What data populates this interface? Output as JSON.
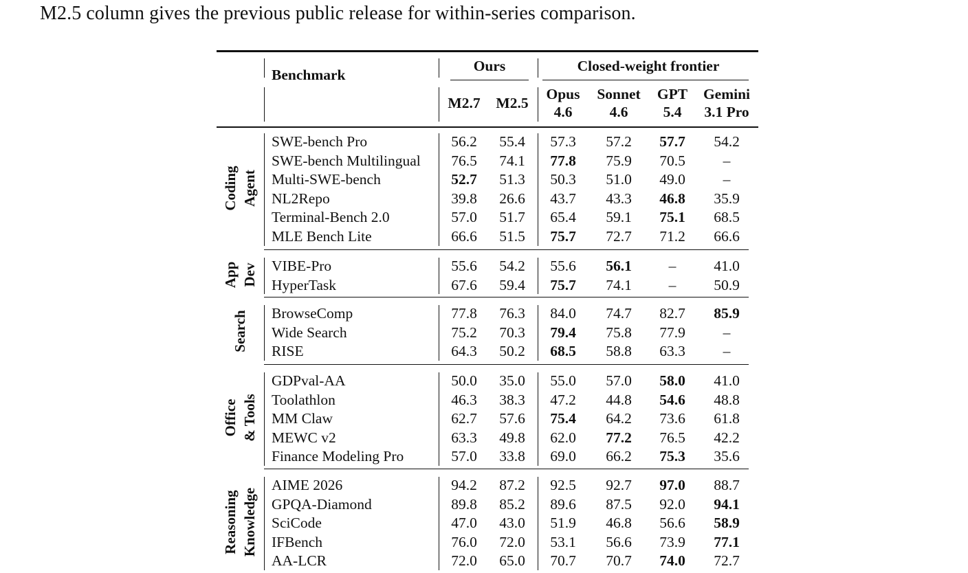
{
  "caption": "M2.5 column gives the previous public release for within-series comparison.",
  "header": {
    "benchmark": "Benchmark",
    "ours": "Ours",
    "closed": "Closed-weight frontier",
    "columns": [
      [
        "M2.7"
      ],
      [
        "M2.5"
      ],
      [
        "Opus",
        "4.6"
      ],
      [
        "Sonnet",
        "4.6"
      ],
      [
        "GPT",
        "5.4"
      ],
      [
        "Gemini",
        "3.1 Pro"
      ]
    ]
  },
  "groups": [
    {
      "label": [
        "Coding",
        "Agent"
      ],
      "rows": [
        {
          "name": "SWE-bench Pro",
          "values": [
            "56.2",
            "55.4",
            "57.3",
            "57.2",
            "57.7",
            "54.2"
          ],
          "bold": 4
        },
        {
          "name": "SWE-bench Multilingual",
          "values": [
            "76.5",
            "74.1",
            "77.8",
            "75.9",
            "70.5",
            "–"
          ],
          "bold": 2
        },
        {
          "name": "Multi-SWE-bench",
          "values": [
            "52.7",
            "51.3",
            "50.3",
            "51.0",
            "49.0",
            "–"
          ],
          "bold": 0
        },
        {
          "name": "NL2Repo",
          "values": [
            "39.8",
            "26.6",
            "43.7",
            "43.3",
            "46.8",
            "35.9"
          ],
          "bold": 4
        },
        {
          "name": "Terminal-Bench 2.0",
          "values": [
            "57.0",
            "51.7",
            "65.4",
            "59.1",
            "75.1",
            "68.5"
          ],
          "bold": 4
        },
        {
          "name": "MLE Bench Lite",
          "values": [
            "66.6",
            "51.5",
            "75.7",
            "72.7",
            "71.2",
            "66.6"
          ],
          "bold": 2
        }
      ]
    },
    {
      "label": [
        "App",
        "Dev"
      ],
      "rows": [
        {
          "name": "VIBE-Pro",
          "values": [
            "55.6",
            "54.2",
            "55.6",
            "56.1",
            "–",
            "41.0"
          ],
          "bold": 3
        },
        {
          "name": "HyperTask",
          "values": [
            "67.6",
            "59.4",
            "75.7",
            "74.1",
            "–",
            "50.9"
          ],
          "bold": 2
        }
      ]
    },
    {
      "label": [
        "Search"
      ],
      "rows": [
        {
          "name": "BrowseComp",
          "values": [
            "77.8",
            "76.3",
            "84.0",
            "74.7",
            "82.7",
            "85.9"
          ],
          "bold": 5
        },
        {
          "name": "Wide Search",
          "values": [
            "75.2",
            "70.3",
            "79.4",
            "75.8",
            "77.9",
            "–"
          ],
          "bold": 2
        },
        {
          "name": "RISE",
          "values": [
            "64.3",
            "50.2",
            "68.5",
            "58.8",
            "63.3",
            "–"
          ],
          "bold": 2
        }
      ]
    },
    {
      "label": [
        "Office",
        "& Tools"
      ],
      "rows": [
        {
          "name": "GDPval-AA",
          "values": [
            "50.0",
            "35.0",
            "55.0",
            "57.0",
            "58.0",
            "41.0"
          ],
          "bold": 4
        },
        {
          "name": "Toolathlon",
          "values": [
            "46.3",
            "38.3",
            "47.2",
            "44.8",
            "54.6",
            "48.8"
          ],
          "bold": 4
        },
        {
          "name": "MM Claw",
          "values": [
            "62.7",
            "57.6",
            "75.4",
            "64.2",
            "73.6",
            "61.8"
          ],
          "bold": 2
        },
        {
          "name": "MEWC v2",
          "values": [
            "63.3",
            "49.8",
            "62.0",
            "77.2",
            "76.5",
            "42.2"
          ],
          "bold": 3
        },
        {
          "name": "Finance Modeling Pro",
          "values": [
            "57.0",
            "33.8",
            "69.0",
            "66.2",
            "75.3",
            "35.6"
          ],
          "bold": 4
        }
      ]
    },
    {
      "label": [
        "Reasoning",
        "Knowledge"
      ],
      "rows": [
        {
          "name": "AIME 2026",
          "values": [
            "94.2",
            "87.2",
            "92.5",
            "92.7",
            "97.0",
            "88.7"
          ],
          "bold": 4
        },
        {
          "name": "GPQA-Diamond",
          "values": [
            "89.8",
            "85.2",
            "89.6",
            "87.5",
            "92.0",
            "94.1"
          ],
          "bold": 5
        },
        {
          "name": "SciCode",
          "values": [
            "47.0",
            "43.0",
            "51.9",
            "46.8",
            "56.6",
            "58.9"
          ],
          "bold": 5
        },
        {
          "name": "IFBench",
          "values": [
            "76.0",
            "72.0",
            "53.1",
            "56.6",
            "73.9",
            "77.1"
          ],
          "bold": 5
        },
        {
          "name": "AA-LCR",
          "values": [
            "72.0",
            "65.0",
            "70.7",
            "70.7",
            "74.0",
            "72.7"
          ],
          "bold": 4
        }
      ]
    }
  ]
}
